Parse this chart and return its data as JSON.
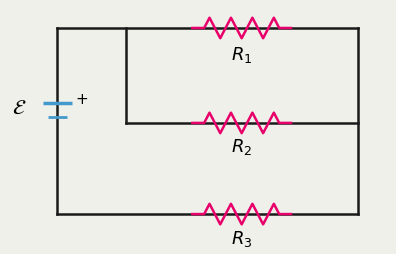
{
  "bg_color": "#f0f0eb",
  "wire_color": "#1a1a1a",
  "resistor_color": "#e8006a",
  "battery_color": "#4499cc",
  "wire_lw": 1.8,
  "resistor_lw": 1.8,
  "battery_lw": 2.5,
  "R1_label": "$R_1$",
  "R2_label": "$R_2$",
  "R3_label": "$R_3$",
  "emf_label": "$\\mathcal{E}$",
  "plus_label": "+",
  "label_fontsize": 13,
  "emf_fontsize": 15
}
